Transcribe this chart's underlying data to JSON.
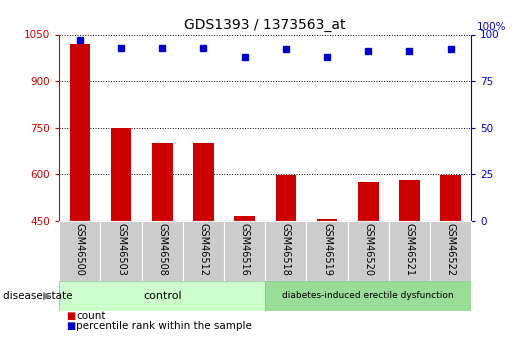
{
  "title": "GDS1393 / 1373563_at",
  "samples": [
    "GSM46500",
    "GSM46503",
    "GSM46508",
    "GSM46512",
    "GSM46516",
    "GSM46518",
    "GSM46519",
    "GSM46520",
    "GSM46521",
    "GSM46522"
  ],
  "counts": [
    1020,
    750,
    700,
    700,
    465,
    598,
    455,
    575,
    580,
    598
  ],
  "percentiles": [
    97,
    93,
    93,
    93,
    88,
    92,
    88,
    91,
    91,
    92
  ],
  "ylim_left": [
    450,
    1050
  ],
  "ylim_right": [
    0,
    100
  ],
  "yticks_left": [
    450,
    600,
    750,
    900,
    1050
  ],
  "yticks_right": [
    0,
    25,
    50,
    75,
    100
  ],
  "bar_color": "#cc0000",
  "dot_color": "#0000cc",
  "control_label": "control",
  "disease_label": "diabetes-induced erectile dysfunction",
  "disease_state_label": "disease state",
  "legend_count": "count",
  "legend_percentile": "percentile rank within the sample",
  "bar_width": 0.5,
  "control_bg": "#ccffcc",
  "disease_bg": "#99dd99",
  "tick_bg": "#cccccc",
  "n_control": 5,
  "n_disease": 5
}
